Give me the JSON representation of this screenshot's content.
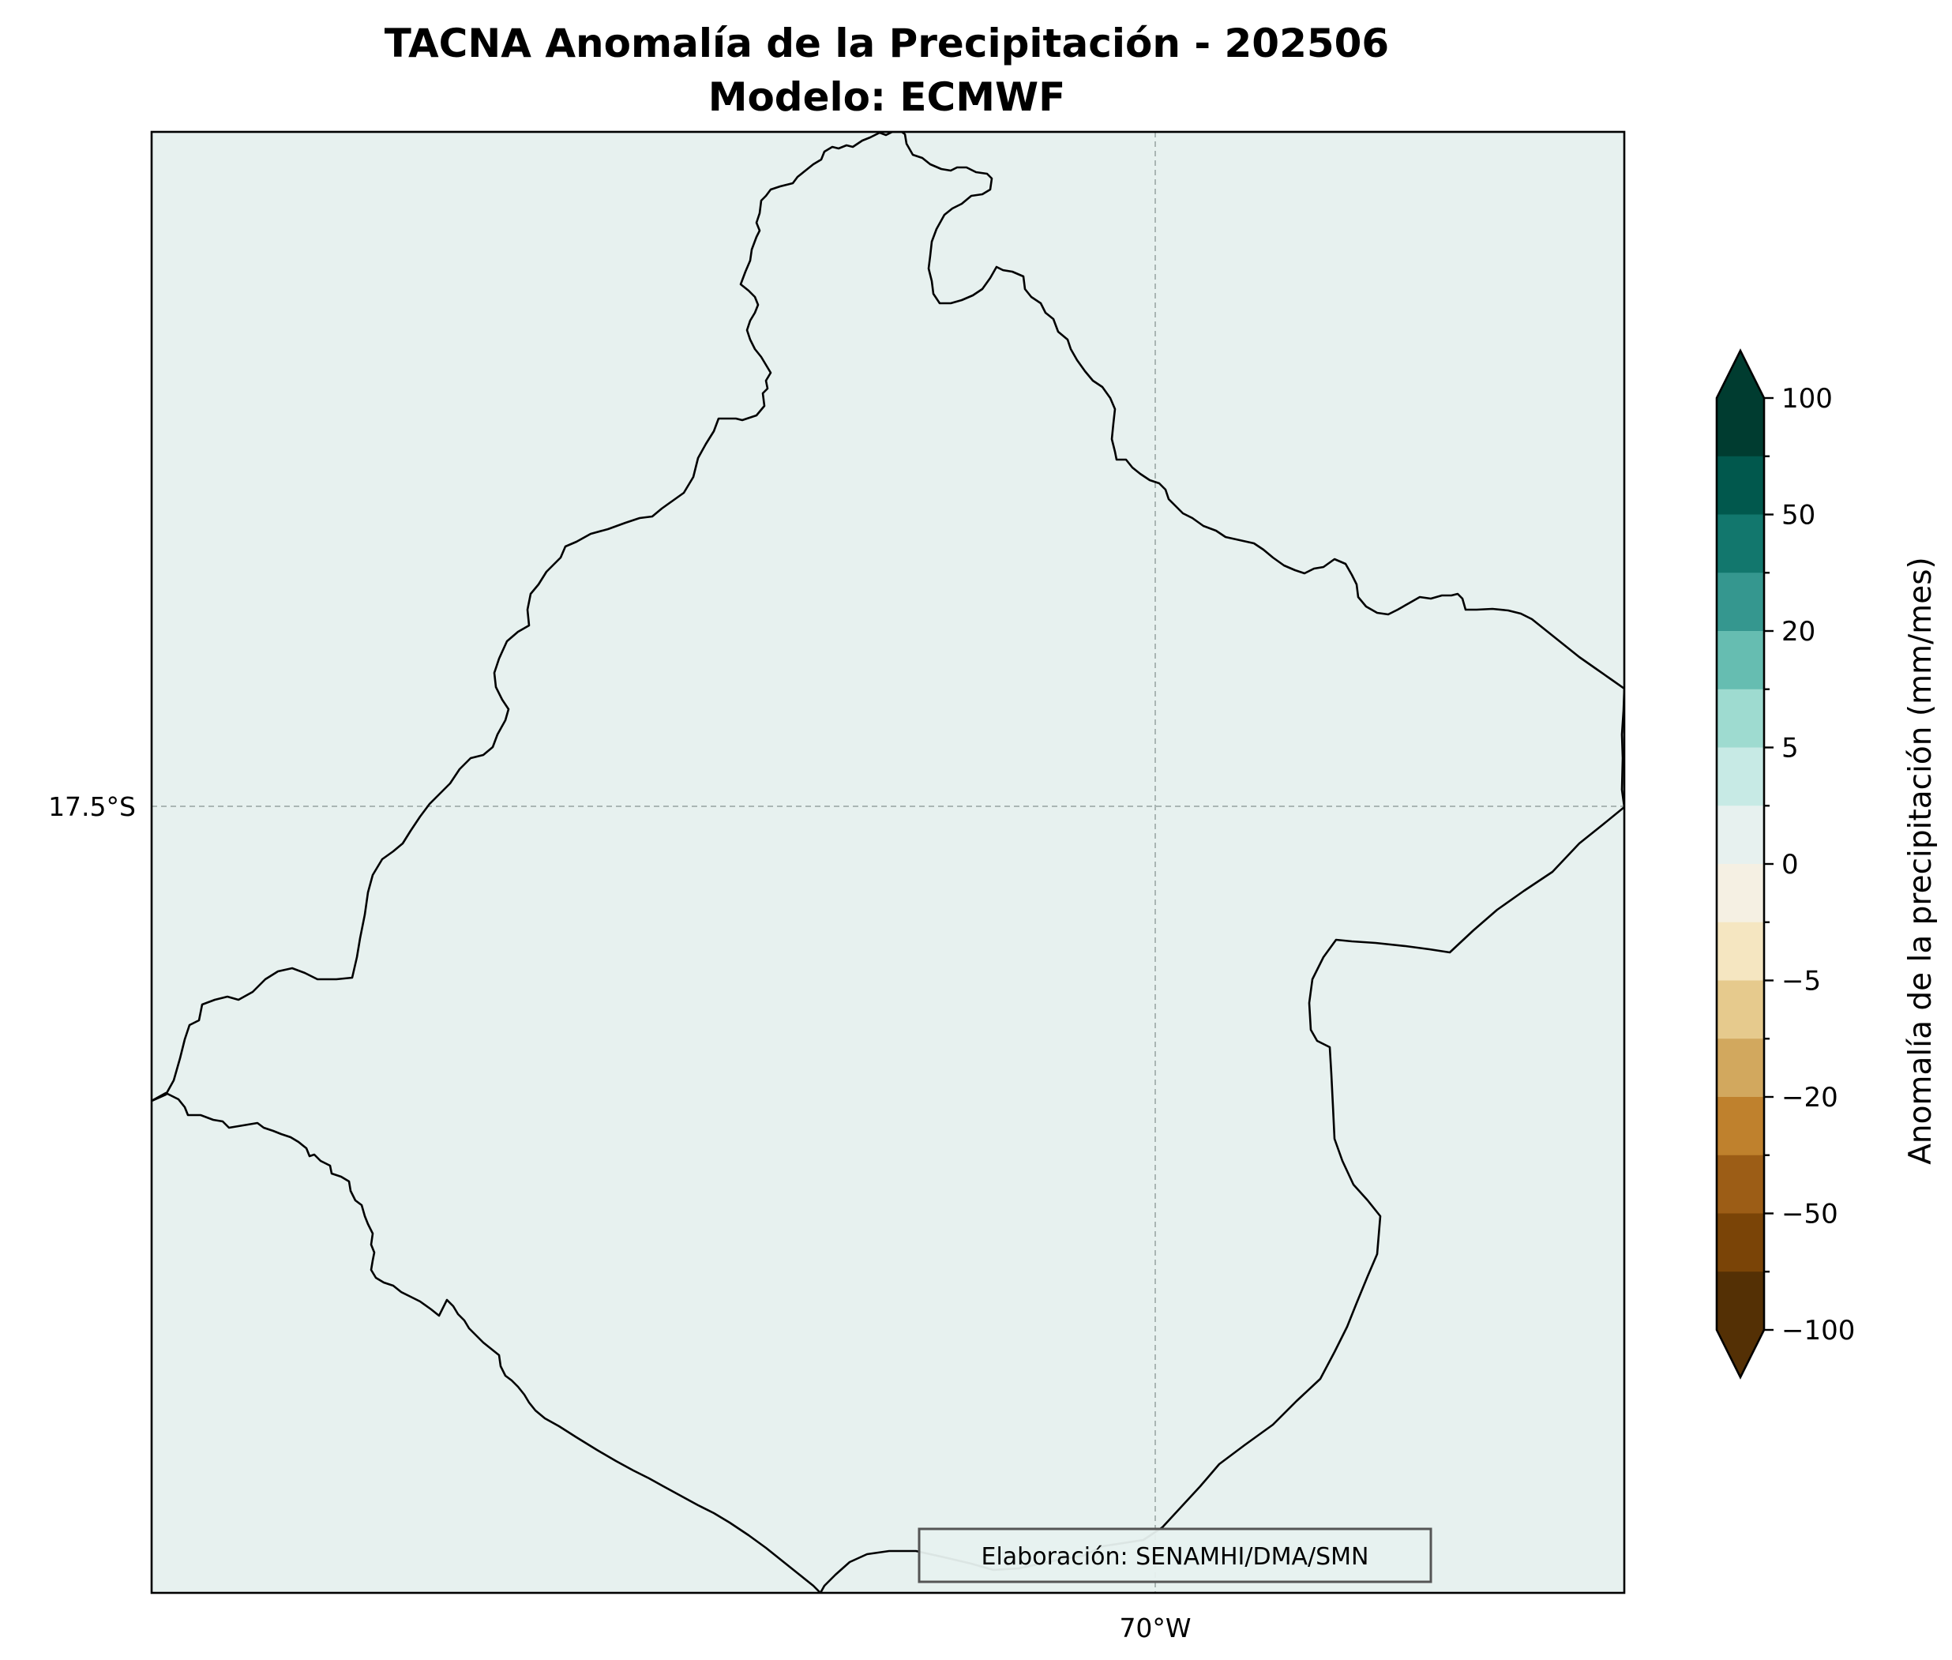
{
  "title": {
    "line1": "TACNA Anomalía de la Precipitación - 202506",
    "line2": "Modelo: ECMWF"
  },
  "map": {
    "background_color": "#e7f1ef",
    "gridline_color": "#aab6b4",
    "lat_labels": [
      "17.5°S"
    ],
    "lon_labels": [
      "70°W"
    ]
  },
  "credit": "Elaboración: SENAMHI/DMA/SMN",
  "colorbar": {
    "label": "Anomalía de la precipitación (mm/mes)",
    "tick_labels": [
      "100",
      "50",
      "20",
      "5",
      "0",
      "−5",
      "−20",
      "−50",
      "−100"
    ],
    "extend": "both",
    "colors_top_to_bottom": [
      "#003c30",
      "#01584d",
      "#12776d",
      "#35978f",
      "#66bdb1",
      "#9edbd0",
      "#c7eae5",
      "#e7f1ef",
      "#f5f0e3",
      "#f5e6c1",
      "#e6ca8d",
      "#d2a85e",
      "#bf812d",
      "#9c5d16",
      "#7a4407",
      "#543005"
    ]
  }
}
